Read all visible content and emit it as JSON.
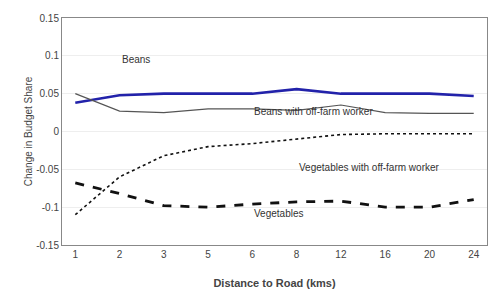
{
  "chart_data": {
    "type": "line",
    "xlabel": "Distance to Road (kms)",
    "ylabel": "Change in Budget Share",
    "categories": [
      "1",
      "2",
      "3",
      "5",
      "6",
      "8",
      "12",
      "16",
      "20",
      "24"
    ],
    "series": [
      {
        "name": "Beans",
        "color": "#2222aa",
        "line_style": "solid",
        "values": [
          0.038,
          0.048,
          0.05,
          0.05,
          0.05,
          0.056,
          0.05,
          0.05,
          0.05,
          0.047
        ]
      },
      {
        "name": "Beans with off-farm worker",
        "color": "#555555",
        "line_style": "solid",
        "values": [
          0.05,
          0.027,
          0.025,
          0.03,
          0.03,
          0.028,
          0.035,
          0.025,
          0.024,
          0.024
        ]
      },
      {
        "name": "Vegetables with off-farm worker",
        "color": "#111111",
        "line_style": "dot",
        "values": [
          -0.11,
          -0.06,
          -0.032,
          -0.02,
          -0.016,
          -0.01,
          -0.004,
          -0.003,
          -0.003,
          -0.003
        ]
      },
      {
        "name": "Vegetables",
        "color": "#111111",
        "line_style": "dash",
        "values": [
          -0.068,
          -0.082,
          -0.098,
          -0.1,
          -0.096,
          -0.093,
          -0.092,
          -0.1,
          -0.1,
          -0.09
        ]
      }
    ],
    "annotations": [
      {
        "text": "Beans",
        "x": "2",
        "y": 0.085
      },
      {
        "text": "Beans with off-farm worker",
        "x": "6",
        "y": 0.016
      },
      {
        "text": "Vegetables with off-farm worker",
        "x": "8",
        "y": -0.057
      },
      {
        "text": "Vegetables",
        "x": "6",
        "y": -0.118
      }
    ],
    "ylim": [
      -0.15,
      0.15
    ],
    "yticks": [
      -0.15,
      -0.1,
      -0.05,
      0,
      0.05,
      0.1,
      0.15
    ],
    "grid": true
  }
}
